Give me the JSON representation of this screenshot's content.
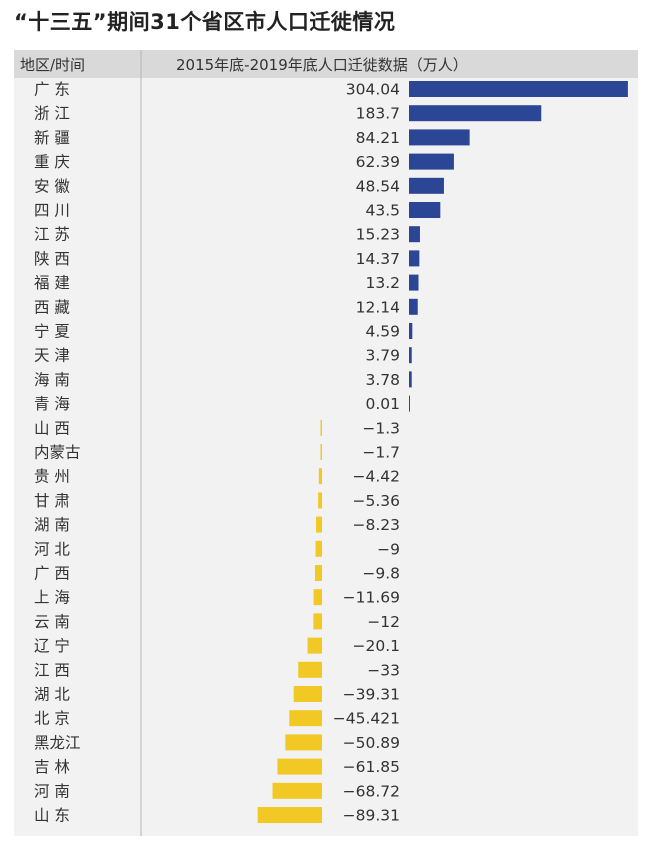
{
  "title": "“十三五”期间31个省区市人口迁徙情况",
  "header": {
    "region_col": "地区/时间",
    "value_col": "2015年底-2019年底人口迁徙数据（万人）"
  },
  "colors": {
    "positive": "#2b4695",
    "negative": "#f2c824",
    "panel": "#f2f2f2",
    "header": "#d9d9d9"
  },
  "chart_data": {
    "type": "bar",
    "orientation": "horizontal",
    "categories": [
      "广  东",
      "浙  江",
      "新  疆",
      "重  庆",
      "安  徽",
      "四  川",
      "江  苏",
      "陕  西",
      "福  建",
      "西  藏",
      "宁  夏",
      "天  津",
      "海  南",
      "青  海",
      "山  西",
      "内蒙古",
      "贵  州",
      "甘  肃",
      "湖  南",
      "河  北",
      "广  西",
      "上  海",
      "云  南",
      "辽  宁",
      "江  西",
      "湖  北",
      "北  京",
      "黑龙江",
      "吉  林",
      "河  南",
      "山  东"
    ],
    "values": [
      304.04,
      183.7,
      84.21,
      62.39,
      48.54,
      43.5,
      15.23,
      14.37,
      13.2,
      12.14,
      4.59,
      3.79,
      3.78,
      0.01,
      -1.3,
      -1.7,
      -4.42,
      -5.36,
      -8.23,
      -9,
      -9.8,
      -11.69,
      -12,
      -20.1,
      -33,
      -39.31,
      -45.421,
      -50.89,
      -61.85,
      -68.72,
      -89.31
    ],
    "labels": [
      "304.04",
      "183.7",
      "84.21",
      "62.39",
      "48.54",
      "43.5",
      "15.23",
      "14.37",
      "13.2",
      "12.14",
      "4.59",
      "3.79",
      "3.78",
      "0.01",
      "−1.3",
      "−1.7",
      "−4.42",
      "−5.36",
      "−8.23",
      "−9",
      "−9.8",
      "−11.69",
      "−12",
      "−20.1",
      "−33",
      "−39.31",
      "−45.421",
      "−50.89",
      "−61.85",
      "−68.72",
      "−89.31"
    ],
    "xlabel": "",
    "ylabel": "",
    "legend": "none",
    "grid": false
  }
}
